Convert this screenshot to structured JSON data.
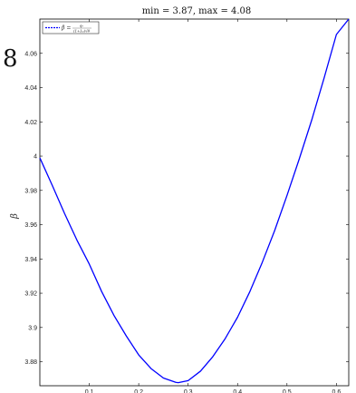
{
  "chart_data": {
    "type": "line",
    "title": "min = 3.87, max = 4.08",
    "side_label": "8",
    "ylabel": "β",
    "xlabel": "",
    "xlim": [
      0,
      0.625
    ],
    "ylim": [
      3.866,
      4.08
    ],
    "x_ticks": [
      "0.1",
      "0.2",
      "0.3",
      "0.4",
      "0.5",
      "0.6"
    ],
    "y_ticks": [
      "3.88",
      "3.9",
      "3.92",
      "3.94",
      "3.96",
      "3.98",
      "4",
      "4.02",
      "4.04",
      "4.06"
    ],
    "grid": false,
    "legend_position": "top-left",
    "series": [
      {
        "name": "β = ",
        "legend_numerator": "q₀",
        "legend_denominator": "(1+λ₀)√θ",
        "color": "#0000ff",
        "line_style": "solid",
        "x": [
          0.0,
          0.025,
          0.05,
          0.075,
          0.1,
          0.125,
          0.15,
          0.175,
          0.2,
          0.225,
          0.25,
          0.275,
          0.28,
          0.3,
          0.325,
          0.35,
          0.375,
          0.4,
          0.425,
          0.45,
          0.475,
          0.5,
          0.525,
          0.55,
          0.575,
          0.6,
          0.625
        ],
        "y": [
          3.999,
          3.983,
          3.9665,
          3.951,
          3.937,
          3.921,
          3.907,
          3.895,
          3.884,
          3.876,
          3.8705,
          3.868,
          3.8678,
          3.869,
          3.8745,
          3.883,
          3.8935,
          3.906,
          3.921,
          3.938,
          3.9565,
          3.977,
          3.9985,
          4.021,
          4.0455,
          4.071,
          4.08
        ]
      }
    ]
  }
}
